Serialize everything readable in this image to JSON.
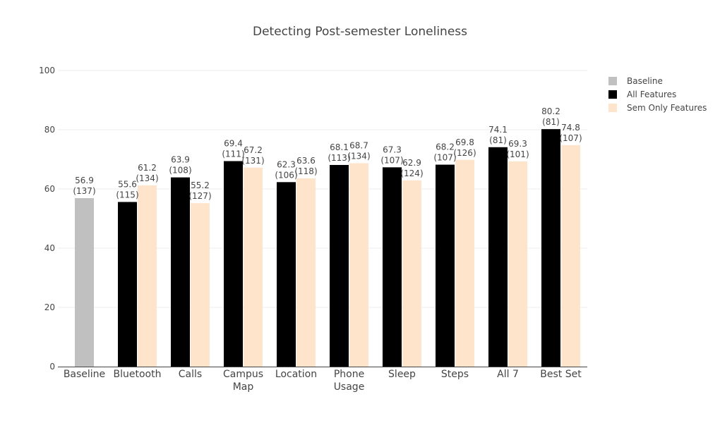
{
  "chart_data": {
    "type": "bar",
    "title": "Detecting Post-semester Loneliness",
    "xlabel": "",
    "ylabel": "",
    "ylim": [
      0,
      100
    ],
    "yticks": [
      0,
      20,
      40,
      60,
      80,
      100
    ],
    "categories": [
      [
        "Baseline"
      ],
      [
        "Bluetooth"
      ],
      [
        "Calls"
      ],
      [
        "Campus",
        "Map"
      ],
      [
        "Location"
      ],
      [
        "Phone",
        "Usage"
      ],
      [
        "Sleep"
      ],
      [
        "Steps"
      ],
      [
        "All 7"
      ],
      [
        "Best Set"
      ]
    ],
    "legend_position": "top-right",
    "series": [
      {
        "name": "Baseline",
        "color": "#c0c0c0",
        "values": [
          56.9,
          null,
          null,
          null,
          null,
          null,
          null,
          null,
          null,
          null
        ],
        "counts": [
          "(137)",
          null,
          null,
          null,
          null,
          null,
          null,
          null,
          null,
          null
        ]
      },
      {
        "name": "All Features",
        "color": "#000000",
        "values": [
          null,
          55.6,
          63.9,
          69.4,
          62.3,
          68.1,
          67.3,
          68.2,
          74.1,
          80.2
        ],
        "counts": [
          null,
          "(115)",
          "(108)",
          "(111)",
          "(106)",
          "(113)",
          "(107)",
          "(107)",
          "(81)",
          "(81)"
        ]
      },
      {
        "name": "Sem Only Features",
        "color": "#ffe4cc",
        "values": [
          null,
          61.2,
          55.2,
          67.2,
          63.6,
          68.7,
          62.9,
          69.8,
          69.3,
          74.8
        ],
        "counts": [
          null,
          "(134)",
          "(127)",
          "(131)",
          "(118)",
          "(134)",
          "(124)",
          "(126)",
          "(101)",
          "(107)"
        ]
      }
    ]
  }
}
